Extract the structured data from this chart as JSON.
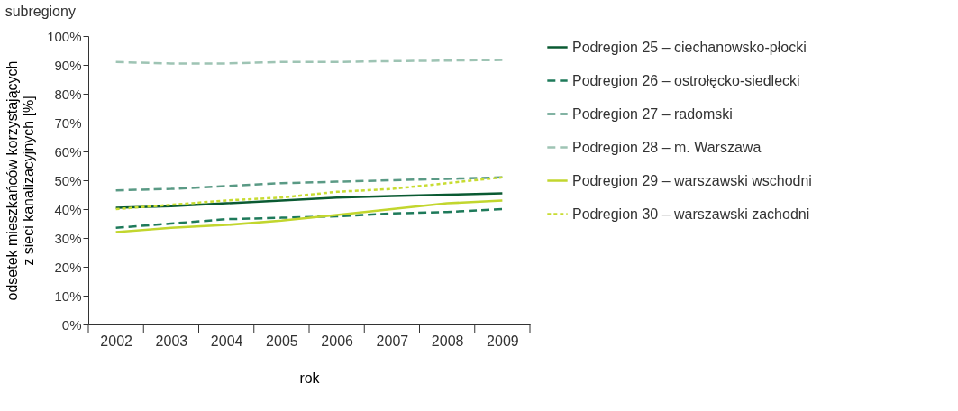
{
  "chart_data": {
    "type": "line",
    "title": "subregiony",
    "xlabel": "rok",
    "ylabel": "odsetek mieszkańców korzystających\nz sieci kanalizacyjnych [%]",
    "categories": [
      "2002",
      "2003",
      "2004",
      "2005",
      "2006",
      "2007",
      "2008",
      "2009"
    ],
    "series": [
      {
        "name": "Podregion 25 – ciechanowsko-płocki",
        "color": "#0a5a32",
        "line_style": "solid",
        "values": [
          40.5,
          41,
          42,
          43,
          44,
          44.5,
          45,
          45.5
        ]
      },
      {
        "name": "Podregion 26 – ostrołęcko-siedlecki",
        "color": "#1e7a5a",
        "line_style": "dashed",
        "values": [
          33.5,
          35,
          36.5,
          37,
          37.5,
          38.5,
          39,
          40
        ]
      },
      {
        "name": "Podregion 27 – radomski",
        "color": "#5a9a85",
        "line_style": "dashed",
        "values": [
          46.5,
          47,
          48,
          49,
          49.5,
          50,
          50.5,
          51
        ]
      },
      {
        "name": "Podregion 28 – m. Warszawa",
        "color": "#9ec4b4",
        "line_style": "dashed",
        "values": [
          91,
          90.5,
          90.5,
          91,
          91,
          91.3,
          91.5,
          91.7
        ]
      },
      {
        "name": "Podregion 29 – warszawski wschodni",
        "color": "#c2d62e",
        "line_style": "solid",
        "values": [
          32,
          33.5,
          34.5,
          36,
          38,
          40,
          42,
          43
        ]
      },
      {
        "name": "Podregion 30 – warszawski zachodni",
        "color": "#c8dc32",
        "line_style": "dotted",
        "values": [
          40,
          41.5,
          43,
          44,
          46,
          47,
          49,
          51
        ]
      }
    ],
    "ylim": [
      0,
      100
    ],
    "yticks": [
      {
        "value": 0,
        "label": "0%"
      },
      {
        "value": 10,
        "label": "10%"
      },
      {
        "value": 20,
        "label": "20%"
      },
      {
        "value": 30,
        "label": "30%"
      },
      {
        "value": 40,
        "label": "40%"
      },
      {
        "value": 50,
        "label": "50%"
      },
      {
        "value": 60,
        "label": "60%"
      },
      {
        "value": 70,
        "label": "70%"
      },
      {
        "value": 80,
        "label": "80%"
      },
      {
        "value": 90,
        "label": "90%"
      },
      {
        "value": 100,
        "label": "100%"
      }
    ],
    "grid": false,
    "legend": "right",
    "marker": "none"
  }
}
